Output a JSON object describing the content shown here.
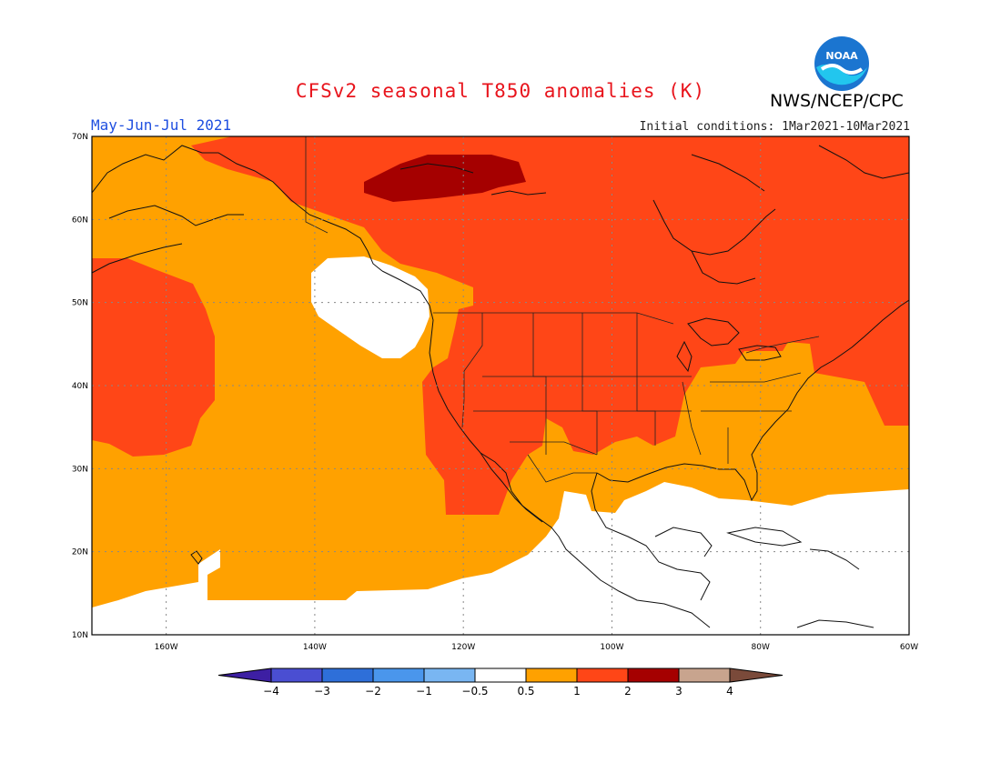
{
  "title": "CFSv2 seasonal T850 anomalies (K)",
  "period": "May-Jun-Jul 2021",
  "initial_conditions": "Initial conditions: 1Mar2021-10Mar2021",
  "agency": "NWS/NCEP/CPC",
  "logo_text": "NOAA",
  "map": {
    "lat_labels": [
      "70N",
      "60N",
      "50N",
      "40N",
      "30N",
      "20N",
      "10N"
    ],
    "lon_labels": [
      "160W",
      "140W",
      "120W",
      "100W",
      "80W",
      "60W"
    ],
    "lat_values": [
      70,
      60,
      50,
      40,
      30,
      20,
      10
    ],
    "lon_values": [
      -160,
      -140,
      -120,
      -100,
      -80,
      -60
    ]
  },
  "colorbar": {
    "labels": [
      "-4",
      "-3",
      "-2",
      "-1",
      "-0.5",
      "0.5",
      "1",
      "2",
      "3",
      "4"
    ],
    "colors": [
      "#3d1fa3",
      "#4a4ed2",
      "#2e6fd9",
      "#4a96ec",
      "#79b6f2",
      "#ffffff",
      "#ffa100",
      "#ff4617",
      "#a50000",
      "#c8a48e",
      "#7a4a3a"
    ]
  },
  "colors": {
    "orange": "#ffa100",
    "red": "#ff4617",
    "darkred": "#a50000",
    "white": "#ffffff"
  }
}
